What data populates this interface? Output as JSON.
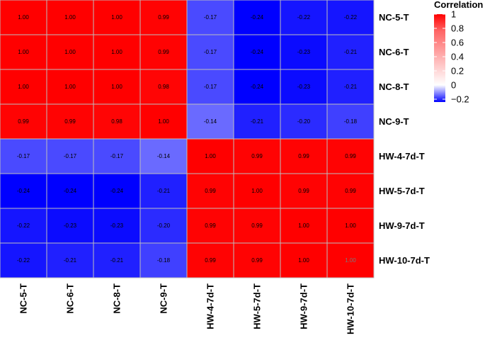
{
  "chart_data": {
    "type": "heatmap",
    "rows": [
      "NC-5-T",
      "NC-6-T",
      "NC-8-T",
      "NC-9-T",
      "HW-4-7d-T",
      "HW-5-7d-T",
      "HW-9-7d-T",
      "HW-10-7d-T"
    ],
    "columns": [
      "NC-5-T",
      "NC-6-T",
      "NC-8-T",
      "NC-9-T",
      "HW-4-7d-T",
      "HW-5-7d-T",
      "HW-9-7d-T",
      "HW-10-7d-T"
    ],
    "values": [
      [
        1.0,
        1.0,
        1.0,
        0.99,
        -0.17,
        -0.24,
        -0.22,
        -0.22
      ],
      [
        1.0,
        1.0,
        1.0,
        0.99,
        -0.17,
        -0.24,
        -0.23,
        -0.21
      ],
      [
        1.0,
        1.0,
        1.0,
        0.98,
        -0.17,
        -0.24,
        -0.23,
        -0.21
      ],
      [
        0.99,
        0.99,
        0.98,
        1.0,
        -0.14,
        -0.21,
        -0.2,
        -0.18
      ],
      [
        -0.17,
        -0.17,
        -0.17,
        -0.14,
        1.0,
        0.99,
        0.99,
        0.99
      ],
      [
        -0.24,
        -0.24,
        -0.24,
        -0.21,
        0.99,
        1.0,
        0.99,
        0.99
      ],
      [
        -0.22,
        -0.23,
        -0.23,
        -0.2,
        0.99,
        0.99,
        1.0,
        1.0
      ],
      [
        -0.22,
        -0.21,
        -0.21,
        -0.18,
        0.99,
        0.99,
        1.0,
        1.0
      ]
    ],
    "legend": {
      "title": "Correlation",
      "ticks": [
        1,
        0.8,
        0.6,
        0.4,
        0.2,
        0,
        -0.2
      ],
      "tick_labels": [
        "1",
        "0.8",
        "0.6",
        "0.4",
        "0.2",
        "0",
        "−0.2"
      ],
      "range": [
        -0.24,
        1.0
      ],
      "placement": "top-right"
    },
    "colors": {
      "low": "#0000FF",
      "mid": "#FFFFFF",
      "high": "#FF0000",
      "grid": "#BEBEBE"
    }
  }
}
